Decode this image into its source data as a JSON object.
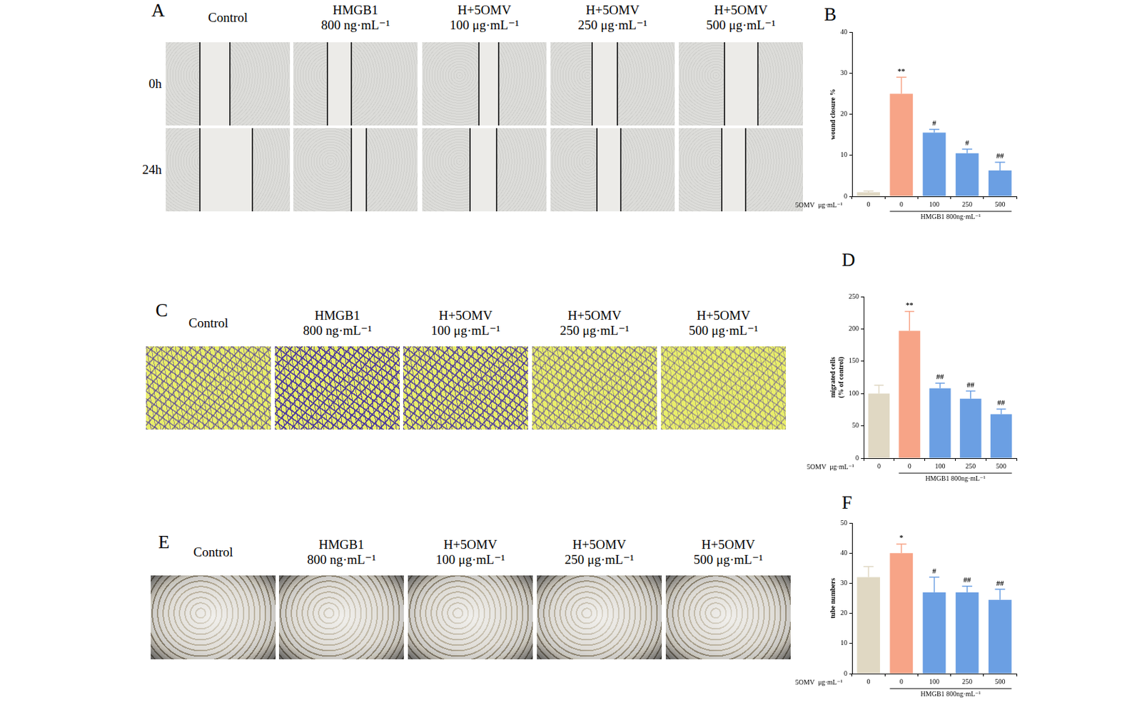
{
  "panels": [
    {
      "letter": "A",
      "columns": [
        [
          "Control"
        ],
        [
          "HMGB1",
          "800 ng·mL⁻¹"
        ],
        [
          "H+5OMV",
          "100 μg·mL⁻¹"
        ],
        [
          "H+5OMV",
          "250  μg·mL⁻¹"
        ],
        [
          "H+5OMV",
          "500  μg·mL⁻¹"
        ]
      ],
      "rows": [
        "0h",
        "24h"
      ]
    },
    {
      "letter": "C",
      "columns": [
        [
          "Control"
        ],
        [
          "HMGB1",
          "800 ng·mL⁻¹"
        ],
        [
          "H+5OMV",
          "100 μg·mL⁻¹"
        ],
        [
          "H+5OMV",
          "250  μg·mL⁻¹"
        ],
        [
          "H+5OMV",
          "500  μg·mL⁻¹"
        ]
      ],
      "rows": []
    },
    {
      "letter": "E",
      "columns": [
        [
          "Control"
        ],
        [
          "HMGB1",
          "800 ng·mL⁻¹"
        ],
        [
          "H+5OMV",
          "100 μg·mL⁻¹"
        ],
        [
          "H+5OMV",
          "250  μg·mL⁻¹"
        ],
        [
          "H+5OMV",
          "500  μg·mL⁻¹"
        ]
      ],
      "rows": []
    }
  ],
  "chart_data": [
    {
      "letter": "B",
      "type": "bar",
      "categories": [
        "0",
        "0",
        "100",
        "250",
        "500"
      ],
      "values": [
        1,
        25,
        15.5,
        10.5,
        6.3
      ],
      "errors": [
        0.3,
        4,
        0.8,
        1,
        2
      ],
      "significance": [
        null,
        "**",
        "#",
        "#",
        "##"
      ],
      "colors": [
        "#e0d8c3",
        "#f7a487",
        "#6b9fe3",
        "#6b9fe3",
        "#6b9fe3"
      ],
      "ylabel": "wound closure %",
      "x_label": "5OMV  μg·mL⁻¹",
      "group_label": "HMGB1 800ng·mL⁻¹",
      "ylim": [
        0,
        40
      ],
      "yticks": [
        0,
        10,
        20,
        30,
        40
      ],
      "grid": false
    },
    {
      "letter": "D",
      "type": "bar",
      "categories": [
        "0",
        "0",
        "100",
        "250",
        "500"
      ],
      "values": [
        100,
        197,
        108,
        92,
        68
      ],
      "errors": [
        13,
        30,
        8,
        12,
        8
      ],
      "significance": [
        null,
        "**",
        "##",
        "##",
        "##"
      ],
      "colors": [
        "#e0d8c3",
        "#f7a487",
        "#6b9fe3",
        "#6b9fe3",
        "#6b9fe3"
      ],
      "ylabel": [
        "migrated cells",
        "(% of control)"
      ],
      "x_label": "5OMV  μg·mL⁻¹",
      "group_label": "HMGB1 800ng·mL⁻¹",
      "ylim": [
        0,
        250
      ],
      "yticks": [
        0,
        50,
        100,
        150,
        200,
        250
      ],
      "grid": false
    },
    {
      "letter": "F",
      "type": "bar",
      "categories": [
        "0",
        "0",
        "100",
        "250",
        "500"
      ],
      "values": [
        32,
        40,
        27,
        27,
        24.5
      ],
      "errors": [
        3.5,
        3,
        5,
        2,
        3.5
      ],
      "significance": [
        null,
        "*",
        "#",
        "##",
        "##"
      ],
      "colors": [
        "#e0d8c3",
        "#f7a487",
        "#6b9fe3",
        "#6b9fe3",
        "#6b9fe3"
      ],
      "ylabel": "tube numbers",
      "x_label": "5OMV  μg·mL⁻¹",
      "group_label": "HMGB1 800ng·mL⁻¹",
      "ylim": [
        0,
        50
      ],
      "yticks": [
        0,
        10,
        20,
        30,
        40,
        50
      ],
      "grid": false
    }
  ]
}
